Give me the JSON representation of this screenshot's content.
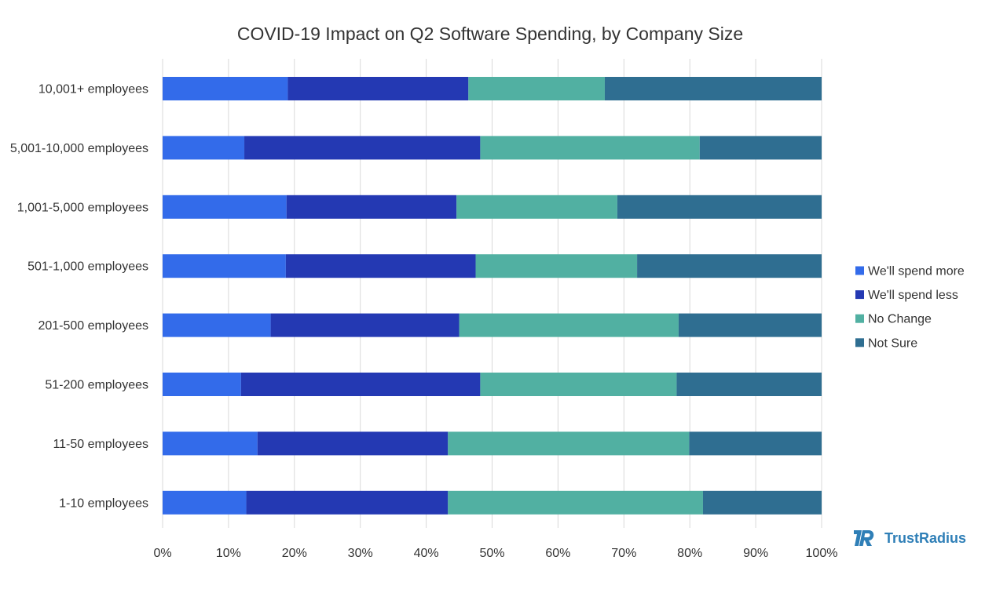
{
  "chart_data": {
    "type": "bar",
    "orientation": "horizontal",
    "stacked": true,
    "title": "COVID-19 Impact on Q2 Software Spending, by Company Size",
    "xlabel": "",
    "ylabel": "",
    "xlim": [
      0,
      100
    ],
    "x_ticks": [
      "0%",
      "10%",
      "20%",
      "30%",
      "40%",
      "50%",
      "60%",
      "70%",
      "80%",
      "90%",
      "100%"
    ],
    "grid": true,
    "legend_position": "right",
    "categories": [
      "10,001+ employees",
      "5,001-10,000 employees",
      "1,001-5,000 employees",
      "501-1,000 employees",
      "201-500 employees",
      "51-200 employees",
      "11-50 employees",
      "1-10 employees"
    ],
    "series": [
      {
        "name": "We'll spend more",
        "color": "#336bea",
        "values": [
          19,
          12.4,
          18.8,
          18.7,
          16.4,
          11.9,
          14.4,
          12.7
        ]
      },
      {
        "name": "We'll spend less",
        "color": "#2439b3",
        "values": [
          27.4,
          35.8,
          25.8,
          28.8,
          28.6,
          36.3,
          28.9,
          30.6
        ]
      },
      {
        "name": "No Change",
        "color": "#51b0a2",
        "values": [
          20.7,
          33.3,
          24.4,
          24.5,
          33.3,
          29.8,
          36.6,
          38.7
        ]
      },
      {
        "name": "Not Sure",
        "color": "#2f6e91",
        "values": [
          32.9,
          18.5,
          31.0,
          28.0,
          21.7,
          22.0,
          20.1,
          18.0
        ]
      }
    ]
  },
  "brand": {
    "name": "TrustRadius",
    "color": "#2f7fb7"
  }
}
